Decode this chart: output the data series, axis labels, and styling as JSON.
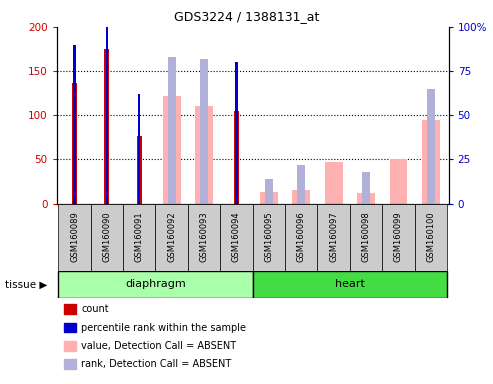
{
  "title": "GDS3224 / 1388131_at",
  "samples": [
    "GSM160089",
    "GSM160090",
    "GSM160091",
    "GSM160092",
    "GSM160093",
    "GSM160094",
    "GSM160095",
    "GSM160096",
    "GSM160097",
    "GSM160098",
    "GSM160099",
    "GSM160100"
  ],
  "n_diaphragm": 6,
  "n_heart": 6,
  "count_values": [
    137,
    175,
    76,
    0,
    0,
    105,
    0,
    0,
    0,
    0,
    0,
    0
  ],
  "rank_values": [
    90,
    100,
    62,
    0,
    0,
    80,
    0,
    0,
    0,
    0,
    0,
    0
  ],
  "absent_value_values": [
    0,
    0,
    0,
    122,
    110,
    0,
    13,
    15,
    47,
    12,
    50,
    95
  ],
  "absent_rank_values": [
    0,
    0,
    0,
    83,
    82,
    0,
    14,
    22,
    0,
    18,
    0,
    65
  ],
  "ylim_left": [
    0,
    200
  ],
  "ylim_right": [
    0,
    100
  ],
  "yticks_left": [
    0,
    50,
    100,
    150,
    200
  ],
  "yticks_right": [
    0,
    25,
    50,
    75,
    100
  ],
  "ytick_labels_left": [
    "0",
    "50",
    "100",
    "150",
    "200"
  ],
  "ytick_labels_right": [
    "0",
    "25",
    "50",
    "75",
    "100%"
  ],
  "color_count": "#cc0000",
  "color_rank": "#0000cc",
  "color_absent_value": "#ffb0b0",
  "color_absent_rank": "#b0b0d8",
  "color_diaphragm": "#aaffaa",
  "color_heart": "#44dd44",
  "color_tickbg": "#cccccc",
  "legend_labels": [
    "count",
    "percentile rank within the sample",
    "value, Detection Call = ABSENT",
    "rank, Detection Call = ABSENT"
  ],
  "legend_colors": [
    "#cc0000",
    "#0000cc",
    "#ffb0b0",
    "#b0b0d8"
  ],
  "legend_square_size": 8
}
